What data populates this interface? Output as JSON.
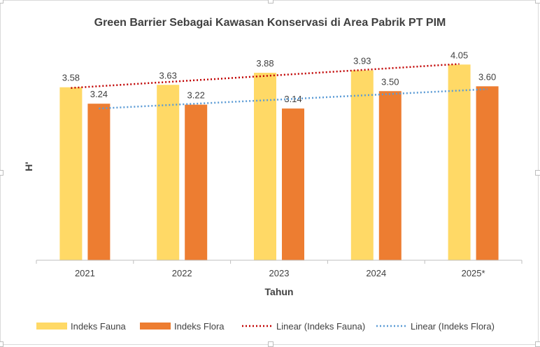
{
  "chart_data": {
    "type": "bar",
    "title": "Green Barrier Sebagai Kawasan Konservasi di Area Pabrik PT PIM",
    "xlabel": "Tahun",
    "ylabel": "H'",
    "categories": [
      "2021",
      "2022",
      "2023",
      "2024",
      "2025*"
    ],
    "ylim": [
      0,
      4.3
    ],
    "grid": false,
    "legend_position": "bottom",
    "series": [
      {
        "name": "Indeks Fauna",
        "values": [
          3.58,
          3.63,
          3.88,
          3.93,
          4.05
        ],
        "labels": [
          "3.58",
          "3.63",
          "3.88",
          "3.93",
          "4.05"
        ],
        "color": "#FFD966"
      },
      {
        "name": "Indeks Flora",
        "values": [
          3.24,
          3.22,
          3.14,
          3.5,
          3.6
        ],
        "labels": [
          "3.24",
          "3.22",
          "3.14",
          "3.50",
          "3.60"
        ],
        "color": "#ED7D31"
      }
    ],
    "trendlines": [
      {
        "name": "Linear (Indeks Fauna)",
        "series": 0,
        "style": "dotted",
        "color": "#C00000"
      },
      {
        "name": "Linear (Indeks Flora)",
        "series": 1,
        "style": "dotted",
        "color": "#5B9BD5"
      }
    ]
  }
}
